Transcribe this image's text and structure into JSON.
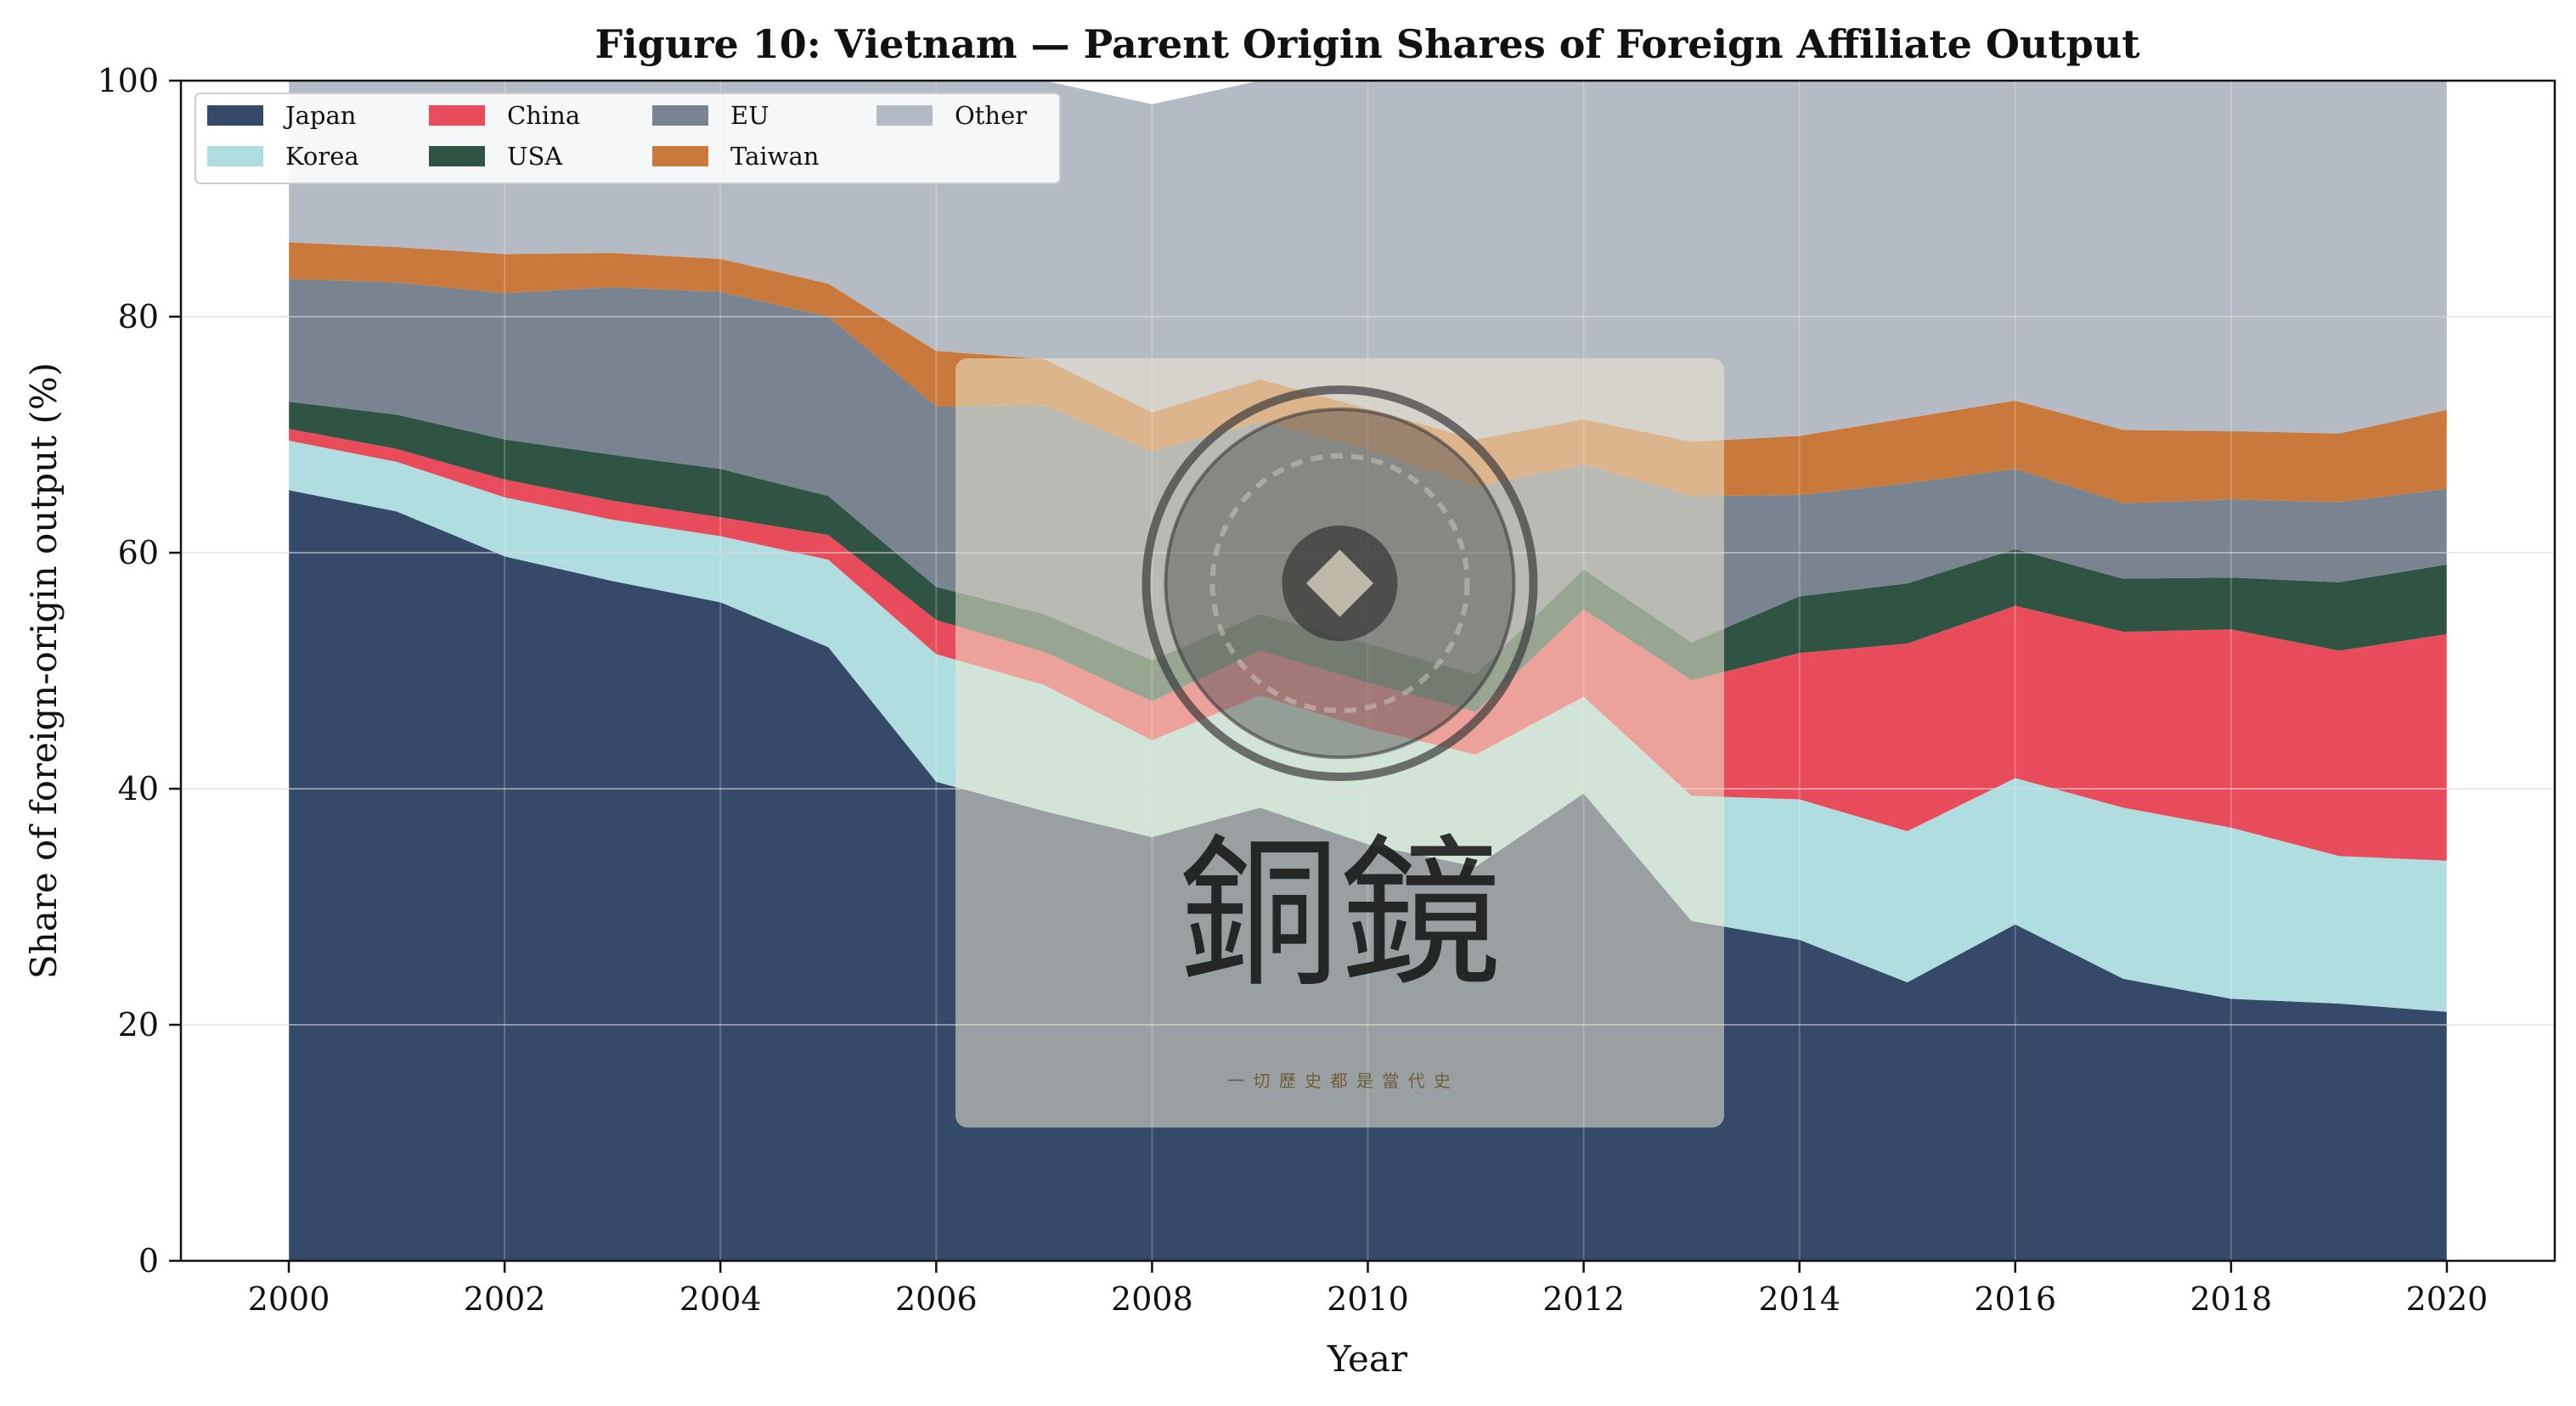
{
  "chart_data": {
    "type": "area",
    "title": "Figure 10: Vietnam — Parent Origin Shares of Foreign Affiliate Output",
    "xlabel": "Year",
    "ylabel": "Share of foreign-origin output (%)",
    "xlim": [
      1999,
      2021
    ],
    "ylim": [
      0,
      100
    ],
    "x_ticks": [
      2000,
      2002,
      2004,
      2006,
      2008,
      2010,
      2012,
      2014,
      2016,
      2018,
      2020
    ],
    "y_ticks": [
      0,
      20,
      40,
      60,
      80,
      100
    ],
    "grid": true,
    "stacked": true,
    "legend_position": "top-left",
    "legend_columns": 4,
    "x": [
      2000,
      2001,
      2002,
      2003,
      2004,
      2005,
      2006,
      2007,
      2008,
      2009,
      2010,
      2011,
      2012,
      2013,
      2014,
      2015,
      2016,
      2017,
      2018,
      2019,
      2020
    ],
    "series": [
      {
        "name": "Japan",
        "color": "#344a68",
        "values": [
          65.3,
          63.5,
          59.7,
          57.6,
          55.8,
          52.0,
          40.6,
          38.1,
          35.9,
          38.4,
          35.3,
          33.4,
          39.6,
          28.8,
          27.2,
          23.6,
          28.5,
          23.9,
          22.2,
          21.8,
          21.1
        ]
      },
      {
        "name": "Korea",
        "color": "#b0dde0",
        "values": [
          4.2,
          4.2,
          5.0,
          5.2,
          5.6,
          7.4,
          10.8,
          10.7,
          8.2,
          9.5,
          9.8,
          9.5,
          8.2,
          10.6,
          11.9,
          12.8,
          12.4,
          14.5,
          14.5,
          12.5,
          12.8
        ]
      },
      {
        "name": "China",
        "color": "#e84c5a",
        "values": [
          1.0,
          1.1,
          1.5,
          1.6,
          1.6,
          2.1,
          2.9,
          2.8,
          3.3,
          3.8,
          3.9,
          3.6,
          7.4,
          9.8,
          12.4,
          15.9,
          14.6,
          14.9,
          16.8,
          17.4,
          19.2
        ]
      },
      {
        "name": "USA",
        "color": "#2f5443",
        "values": [
          2.3,
          2.9,
          3.4,
          3.9,
          4.1,
          3.3,
          2.8,
          3.2,
          3.5,
          3.1,
          3.3,
          3.2,
          3.4,
          3.2,
          4.8,
          5.1,
          4.8,
          4.5,
          4.4,
          5.8,
          5.9
        ]
      },
      {
        "name": "EU",
        "color": "#7a8490",
        "values": [
          10.4,
          11.2,
          12.4,
          14.2,
          15.0,
          15.2,
          15.3,
          17.7,
          17.7,
          16.3,
          16.5,
          15.9,
          8.9,
          12.4,
          8.6,
          8.5,
          6.8,
          6.4,
          6.6,
          6.8,
          6.4
        ]
      },
      {
        "name": "Taiwan",
        "color": "#c8793b",
        "values": [
          3.1,
          3.0,
          3.3,
          2.9,
          2.8,
          2.8,
          4.7,
          3.9,
          3.3,
          3.6,
          3.4,
          4.0,
          3.8,
          4.6,
          5.0,
          5.5,
          5.8,
          6.2,
          5.8,
          5.8,
          6.7
        ]
      },
      {
        "name": "Other",
        "color": "#b5bbc4",
        "values": [
          13.7,
          14.1,
          14.7,
          14.6,
          15.1,
          17.2,
          22.9,
          23.6,
          26.1,
          25.3,
          27.8,
          30.4,
          28.7,
          30.6,
          30.1,
          28.6,
          27.1,
          29.6,
          29.7,
          29.9,
          27.9
        ]
      }
    ]
  },
  "watermark": {
    "characters": "銅鏡",
    "motto": "一 切 歷 史 都 是 當 代 史"
  }
}
